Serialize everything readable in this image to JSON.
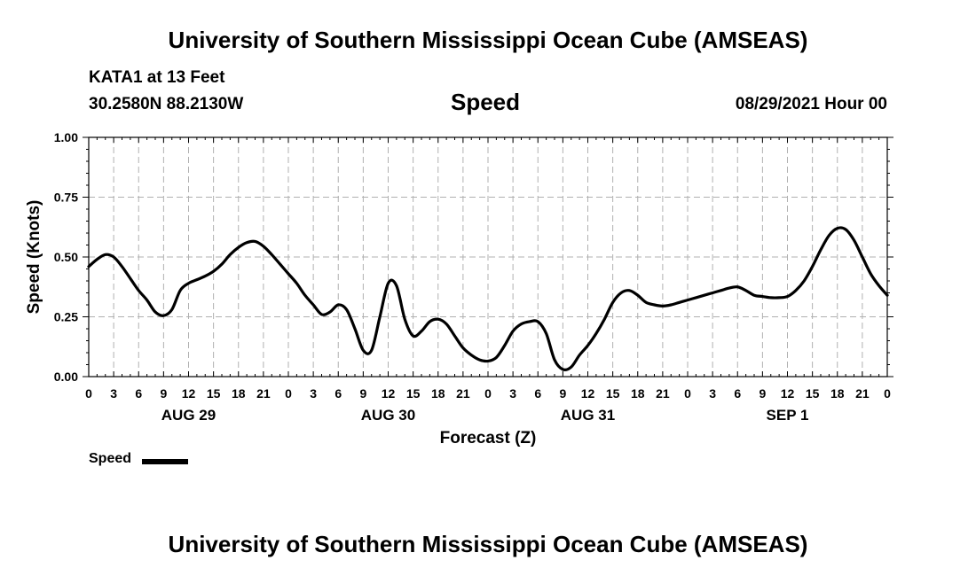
{
  "header": {
    "title": "University of Southern Mississippi Ocean Cube (AMSEAS)",
    "station": "KATA1 at 13 Feet",
    "coords": "30.2580N  88.2130W",
    "variable": "Speed",
    "date": "08/29/2021 Hour 00"
  },
  "footer": {
    "title": "University of Southern Mississippi Ocean Cube (AMSEAS)"
  },
  "legend": {
    "label": "Speed"
  },
  "colors": {
    "line": "#000000",
    "grid": "#b0b0b0"
  },
  "chart_data": {
    "type": "line",
    "title": "Speed",
    "xlabel": "Forecast (Z)",
    "ylabel": "Speed (Knots)",
    "ylim": [
      0,
      1
    ],
    "yticks": [
      "0.00",
      "0.25",
      "0.50",
      "0.75",
      "1.00"
    ],
    "ytick_values": [
      0,
      0.25,
      0.5,
      0.75,
      1.0
    ],
    "xlim_hours": [
      0,
      96
    ],
    "xticks": [
      "0",
      "3",
      "6",
      "9",
      "12",
      "15",
      "18",
      "21",
      "0",
      "3",
      "6",
      "9",
      "12",
      "15",
      "18",
      "21",
      "0",
      "3",
      "6",
      "9",
      "12",
      "15",
      "18",
      "21",
      "0",
      "3",
      "6",
      "9",
      "12",
      "15",
      "18",
      "21",
      "0"
    ],
    "day_labels": [
      {
        "label": "AUG 29",
        "hour": 12
      },
      {
        "label": "AUG 30",
        "hour": 36
      },
      {
        "label": "AUG 31",
        "hour": 60
      },
      {
        "label": "SEP 1",
        "hour": 84
      }
    ],
    "grid": true,
    "series": [
      {
        "name": "Speed",
        "x": [
          0,
          1,
          2,
          3,
          4,
          5,
          6,
          7,
          8,
          9,
          10,
          11,
          12,
          13,
          14,
          15,
          16,
          17,
          18,
          19,
          20,
          21,
          22,
          23,
          24,
          25,
          26,
          27,
          28,
          29,
          30,
          31,
          32,
          33,
          34,
          35,
          36,
          37,
          38,
          39,
          40,
          41,
          42,
          43,
          44,
          45,
          46,
          47,
          48,
          49,
          50,
          51,
          52,
          53,
          54,
          55,
          56,
          57,
          58,
          59,
          60,
          61,
          62,
          63,
          64,
          65,
          66,
          67,
          68,
          69,
          70,
          71,
          72,
          73,
          74,
          75,
          76,
          77,
          78,
          79,
          80,
          81,
          82,
          83,
          84,
          85,
          86,
          87,
          88,
          89,
          90,
          91,
          92,
          93,
          94,
          95,
          96
        ],
        "values": [
          0.46,
          0.49,
          0.51,
          0.5,
          0.46,
          0.41,
          0.36,
          0.32,
          0.27,
          0.255,
          0.28,
          0.36,
          0.39,
          0.405,
          0.42,
          0.44,
          0.47,
          0.51,
          0.54,
          0.56,
          0.565,
          0.545,
          0.51,
          0.47,
          0.43,
          0.39,
          0.34,
          0.3,
          0.26,
          0.27,
          0.3,
          0.28,
          0.2,
          0.11,
          0.11,
          0.25,
          0.39,
          0.38,
          0.24,
          0.17,
          0.19,
          0.23,
          0.24,
          0.22,
          0.17,
          0.12,
          0.09,
          0.07,
          0.065,
          0.08,
          0.13,
          0.19,
          0.22,
          0.23,
          0.23,
          0.18,
          0.07,
          0.03,
          0.04,
          0.09,
          0.13,
          0.18,
          0.24,
          0.31,
          0.35,
          0.36,
          0.34,
          0.31,
          0.3,
          0.295,
          0.3,
          0.31,
          0.32,
          0.33,
          0.34,
          0.35,
          0.36,
          0.37,
          0.375,
          0.36,
          0.34,
          0.335,
          0.33,
          0.33,
          0.335,
          0.36,
          0.4,
          0.46,
          0.53,
          0.59,
          0.62,
          0.615,
          0.57,
          0.5,
          0.43,
          0.38,
          0.34
        ]
      }
    ]
  }
}
